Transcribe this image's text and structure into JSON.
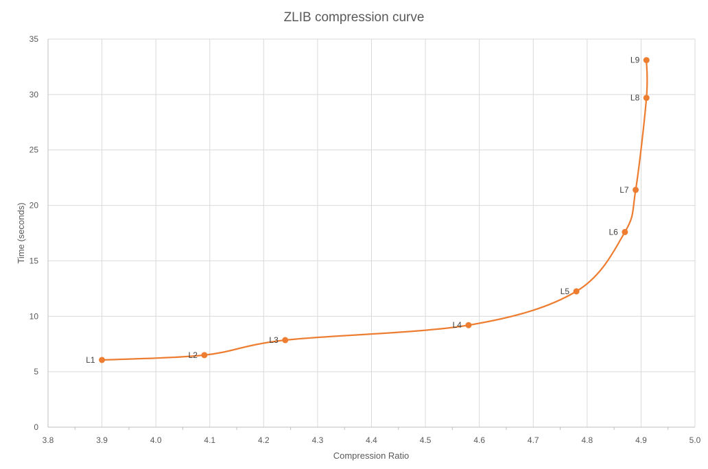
{
  "chart_data": {
    "type": "scatter",
    "title": "ZLIB compression curve",
    "xlabel": "Compression Ratio",
    "ylabel": "Time (seconds)",
    "xlim": [
      3.8,
      5.0
    ],
    "ylim": [
      0,
      35
    ],
    "x_ticks": [
      "3.8",
      "3.9",
      "4.0",
      "4.1",
      "4.2",
      "4.3",
      "4.4",
      "4.5",
      "4.6",
      "4.7",
      "4.8",
      "4.9",
      "5.0"
    ],
    "y_ticks": [
      "0",
      "5",
      "10",
      "15",
      "20",
      "25",
      "30",
      "35"
    ],
    "grid": true,
    "legend": null,
    "line_style": "smoothed",
    "series": [
      {
        "name": "ZLIB levels",
        "color": "#ed7d31",
        "points": [
          {
            "label": "L1",
            "x": 3.9,
            "y": 6.06
          },
          {
            "label": "L2",
            "x": 4.09,
            "y": 6.5
          },
          {
            "label": "L3",
            "x": 4.24,
            "y": 7.85
          },
          {
            "label": "L4",
            "x": 4.58,
            "y": 9.2
          },
          {
            "label": "L5",
            "x": 4.78,
            "y": 12.25
          },
          {
            "label": "L6",
            "x": 4.87,
            "y": 17.6
          },
          {
            "label": "L7",
            "x": 4.89,
            "y": 21.4
          },
          {
            "label": "L8",
            "x": 4.91,
            "y": 29.7
          },
          {
            "label": "L9",
            "x": 4.91,
            "y": 33.1
          }
        ]
      }
    ]
  },
  "colors": {
    "series": "#ed7d31",
    "grid": "#d9d9d9",
    "text": "#595959"
  }
}
